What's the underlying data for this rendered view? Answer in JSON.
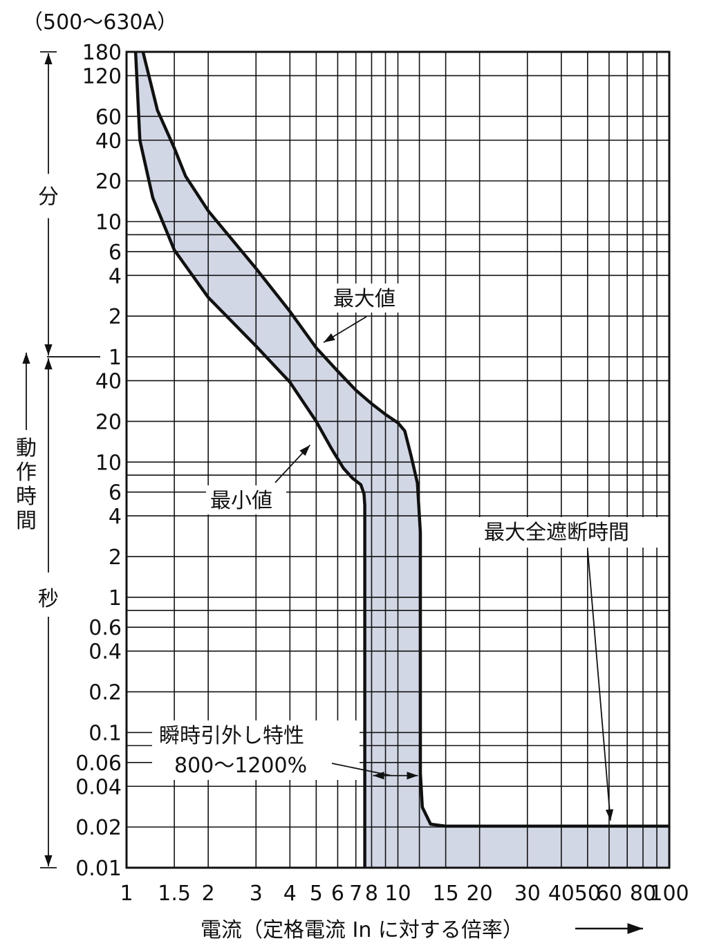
{
  "chart_data": {
    "type": "line",
    "title": "（500〜630A）",
    "xlabel": "電流（定格電流 In に対する倍率）",
    "x_scale": "log",
    "xlim": [
      1,
      100
    ],
    "x_ticks": [
      {
        "v": 1,
        "label": "1"
      },
      {
        "v": 1.5,
        "label": "1.5"
      },
      {
        "v": 2,
        "label": "2"
      },
      {
        "v": 3,
        "label": "3"
      },
      {
        "v": 4,
        "label": "4"
      },
      {
        "v": 5,
        "label": "5"
      },
      {
        "v": 6,
        "label": "6"
      },
      {
        "v": 7,
        "label": "7"
      },
      {
        "v": 8,
        "label": "8"
      },
      {
        "v": 10,
        "label": "10"
      },
      {
        "v": 15,
        "label": "15"
      },
      {
        "v": 20,
        "label": "20"
      },
      {
        "v": 30,
        "label": "30"
      },
      {
        "v": 40,
        "label": "40"
      },
      {
        "v": 50,
        "label": "50"
      },
      {
        "v": 60,
        "label": "60"
      },
      {
        "v": 80,
        "label": "80"
      },
      {
        "v": 100,
        "label": "100"
      }
    ],
    "x_grid": [
      1,
      1.5,
      2,
      3,
      4,
      5,
      6,
      7,
      8,
      9,
      10,
      12,
      15,
      20,
      30,
      40,
      50,
      60,
      70,
      80,
      90,
      100
    ],
    "y_scale": "log",
    "y_unit": "s",
    "ylim_seconds": [
      0.01,
      10800
    ],
    "y_ticks": [
      {
        "s": 10800,
        "label": "180"
      },
      {
        "s": 7200,
        "label": "120"
      },
      {
        "s": 3600,
        "label": "60"
      },
      {
        "s": 2400,
        "label": "40"
      },
      {
        "s": 1200,
        "label": "20"
      },
      {
        "s": 600,
        "label": "10"
      },
      {
        "s": 360,
        "label": "6"
      },
      {
        "s": 240,
        "label": "4"
      },
      {
        "s": 120,
        "label": "2"
      },
      {
        "s": 60,
        "label": "1"
      },
      {
        "s": 40,
        "label": "40"
      },
      {
        "s": 20,
        "label": "20"
      },
      {
        "s": 10,
        "label": "10"
      },
      {
        "s": 6,
        "label": "6"
      },
      {
        "s": 4,
        "label": "4"
      },
      {
        "s": 2,
        "label": "2"
      },
      {
        "s": 1,
        "label": "1"
      },
      {
        "s": 0.6,
        "label": "0.6"
      },
      {
        "s": 0.4,
        "label": "0.4"
      },
      {
        "s": 0.2,
        "label": "0.2"
      },
      {
        "s": 0.1,
        "label": "0.1"
      },
      {
        "s": 0.06,
        "label": "0.06"
      },
      {
        "s": 0.04,
        "label": "0.04"
      },
      {
        "s": 0.02,
        "label": "0.02"
      },
      {
        "s": 0.01,
        "label": "0.01"
      }
    ],
    "y_grid": [
      10800,
      7200,
      3600,
      2400,
      1200,
      600,
      480,
      360,
      240,
      120,
      60,
      40,
      20,
      10,
      8,
      6,
      4,
      2,
      1,
      0.8,
      0.6,
      0.4,
      0.2,
      0.1,
      0.08,
      0.06,
      0.04,
      0.02,
      0.01
    ],
    "y_axis_groups": [
      {
        "label": "分",
        "from_s": 10800,
        "to_s": 60
      },
      {
        "label": "秒",
        "from_s": 60,
        "to_s": 0.01
      }
    ],
    "y_title": "動作時間",
    "series": [
      {
        "name": "最大値",
        "points": [
          [
            1.15,
            10800
          ],
          [
            1.3,
            4000
          ],
          [
            1.5,
            2100
          ],
          [
            1.65,
            1300
          ],
          [
            2,
            720
          ],
          [
            3,
            270
          ],
          [
            4,
            130
          ],
          [
            5,
            70
          ],
          [
            6,
            47
          ],
          [
            7,
            34
          ],
          [
            8,
            27
          ],
          [
            9,
            22.5
          ],
          [
            10,
            19.5
          ],
          [
            10.6,
            17
          ],
          [
            11.2,
            11
          ],
          [
            11.8,
            7
          ],
          [
            12.1,
            3
          ],
          [
            12.1,
            0.05
          ],
          [
            12.3,
            0.028
          ],
          [
            13.2,
            0.021
          ],
          [
            15,
            0.0203
          ],
          [
            30,
            0.0203
          ],
          [
            60,
            0.0203
          ],
          [
            100,
            0.0203
          ]
        ]
      },
      {
        "name": "最小値",
        "points": [
          [
            1.08,
            10800
          ],
          [
            1.12,
            2400
          ],
          [
            1.25,
            900
          ],
          [
            1.5,
            370
          ],
          [
            2,
            165
          ],
          [
            3,
            72
          ],
          [
            4,
            39
          ],
          [
            5,
            20
          ],
          [
            5.7,
            12.5
          ],
          [
            6.3,
            9
          ],
          [
            6.8,
            7.6
          ],
          [
            7.3,
            6.8
          ],
          [
            7.5,
            5.8
          ],
          [
            7.55,
            4.8
          ],
          [
            7.55,
            0.01
          ]
        ]
      }
    ],
    "annotations": [
      {
        "text": "最大値",
        "target": [
          5.2,
          74
        ]
      },
      {
        "text": "最小値",
        "target": [
          4.8,
          14
        ]
      },
      {
        "text": "最大全遮断時間",
        "target": [
          60,
          0.0203
        ]
      },
      {
        "text": "瞬時引外し特性",
        "text2": "800〜1200%",
        "range": [
          8,
          12
        ]
      }
    ]
  },
  "colors": {
    "band_fill": "#d2d7e6",
    "line": "#111111",
    "background": "#ffffff"
  }
}
